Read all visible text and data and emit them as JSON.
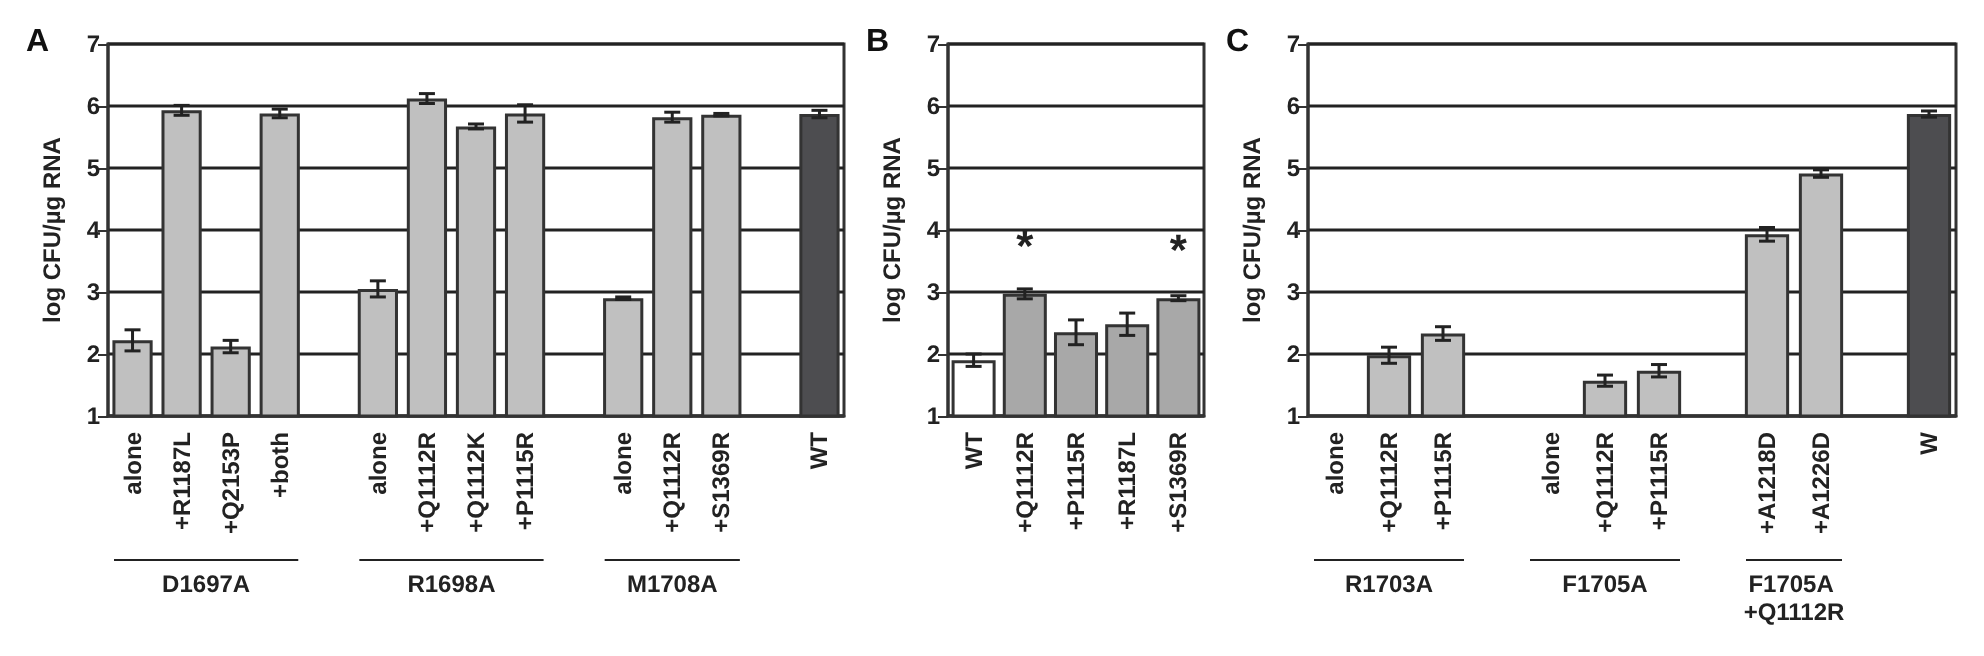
{
  "chart_data": [
    {
      "type": "bar",
      "title": "A",
      "ylabel": "log CFU/µg RNA",
      "categories": [
        "alone",
        "+R1187L",
        "+Q2153P",
        "+both",
        null,
        "alone",
        "+Q1112R",
        "+Q1112K",
        "+P1115R",
        null,
        "alone",
        "+Q1112R",
        "+S1369R",
        null,
        "WT"
      ],
      "values": [
        2.22,
        5.93,
        2.12,
        5.88,
        null,
        3.05,
        6.12,
        5.67,
        5.88,
        null,
        2.9,
        5.82,
        5.86,
        null,
        5.87
      ],
      "errors": [
        0.17,
        0.08,
        0.1,
        0.07,
        null,
        0.13,
        0.08,
        0.04,
        0.14,
        null,
        0.02,
        0.08,
        0.02,
        null,
        0.06
      ],
      "colors": [
        "#c0c0c0",
        "#c0c0c0",
        "#c0c0c0",
        "#c0c0c0",
        "#c0c0c0",
        "#c0c0c0",
        "#c0c0c0",
        "#c0c0c0",
        "#c0c0c0",
        "#c0c0c0",
        "#c0c0c0",
        "#c0c0c0",
        "#c0c0c0",
        "#c0c0c0",
        "#4d4d50"
      ],
      "ylim": [
        1,
        7
      ],
      "yticks": [
        1,
        2,
        3,
        4,
        5,
        6,
        7
      ],
      "grid": "y",
      "annotations": [
        "D1697A",
        "R1698A",
        "M1708A"
      ]
    },
    {
      "type": "bar",
      "title": "B",
      "ylabel": "log CFU/µg RNA",
      "categories": [
        "WT",
        "+Q1112R",
        "+P1115R",
        "+R1187L",
        "+S1369R"
      ],
      "values": [
        1.9,
        2.97,
        2.35,
        2.48,
        2.9
      ],
      "errors": [
        0.1,
        0.08,
        0.2,
        0.18,
        0.04
      ],
      "colors": [
        "#ffffff",
        "#a8a8a8",
        "#a8a8a8",
        "#a8a8a8",
        "#a8a8a8"
      ],
      "ylim": [
        1,
        7
      ],
      "yticks": [
        1,
        2,
        3,
        4,
        5,
        6,
        7
      ],
      "grid": "y",
      "annotations": [
        {
          "text": "*",
          "x": "+Q1112R",
          "y": 2.97
        },
        {
          "text": "*",
          "x": "+S1369R",
          "y": 2.9
        }
      ]
    },
    {
      "type": "bar",
      "title": "C",
      "ylabel": "log CFU/µg RNA",
      "categories": [
        "alone",
        "+Q1112R",
        "+P1115R",
        null,
        "alone",
        "+Q1112R",
        "+P1115R",
        null,
        "+A1218D",
        "+A1226D",
        null,
        "W"
      ],
      "values": [
        null,
        1.98,
        2.33,
        null,
        null,
        1.57,
        1.73,
        null,
        3.93,
        4.91,
        null,
        5.87
      ],
      "errors": [
        null,
        0.13,
        0.11,
        null,
        null,
        0.09,
        0.1,
        null,
        0.11,
        0.06,
        null,
        0.05
      ],
      "colors": [
        "#c0c0c0",
        "#c0c0c0",
        "#c0c0c0",
        "#c0c0c0",
        "#c0c0c0",
        "#c0c0c0",
        "#c0c0c0",
        "#c0c0c0",
        "#c0c0c0",
        "#c0c0c0",
        "#c0c0c0",
        "#4d4d50"
      ],
      "ylim": [
        1,
        7
      ],
      "yticks": [
        1,
        2,
        3,
        4,
        5,
        6,
        7
      ],
      "grid": "y",
      "annotations": [
        "R1703A",
        "F1705A",
        "F1705A +Q1112R"
      ]
    }
  ]
}
